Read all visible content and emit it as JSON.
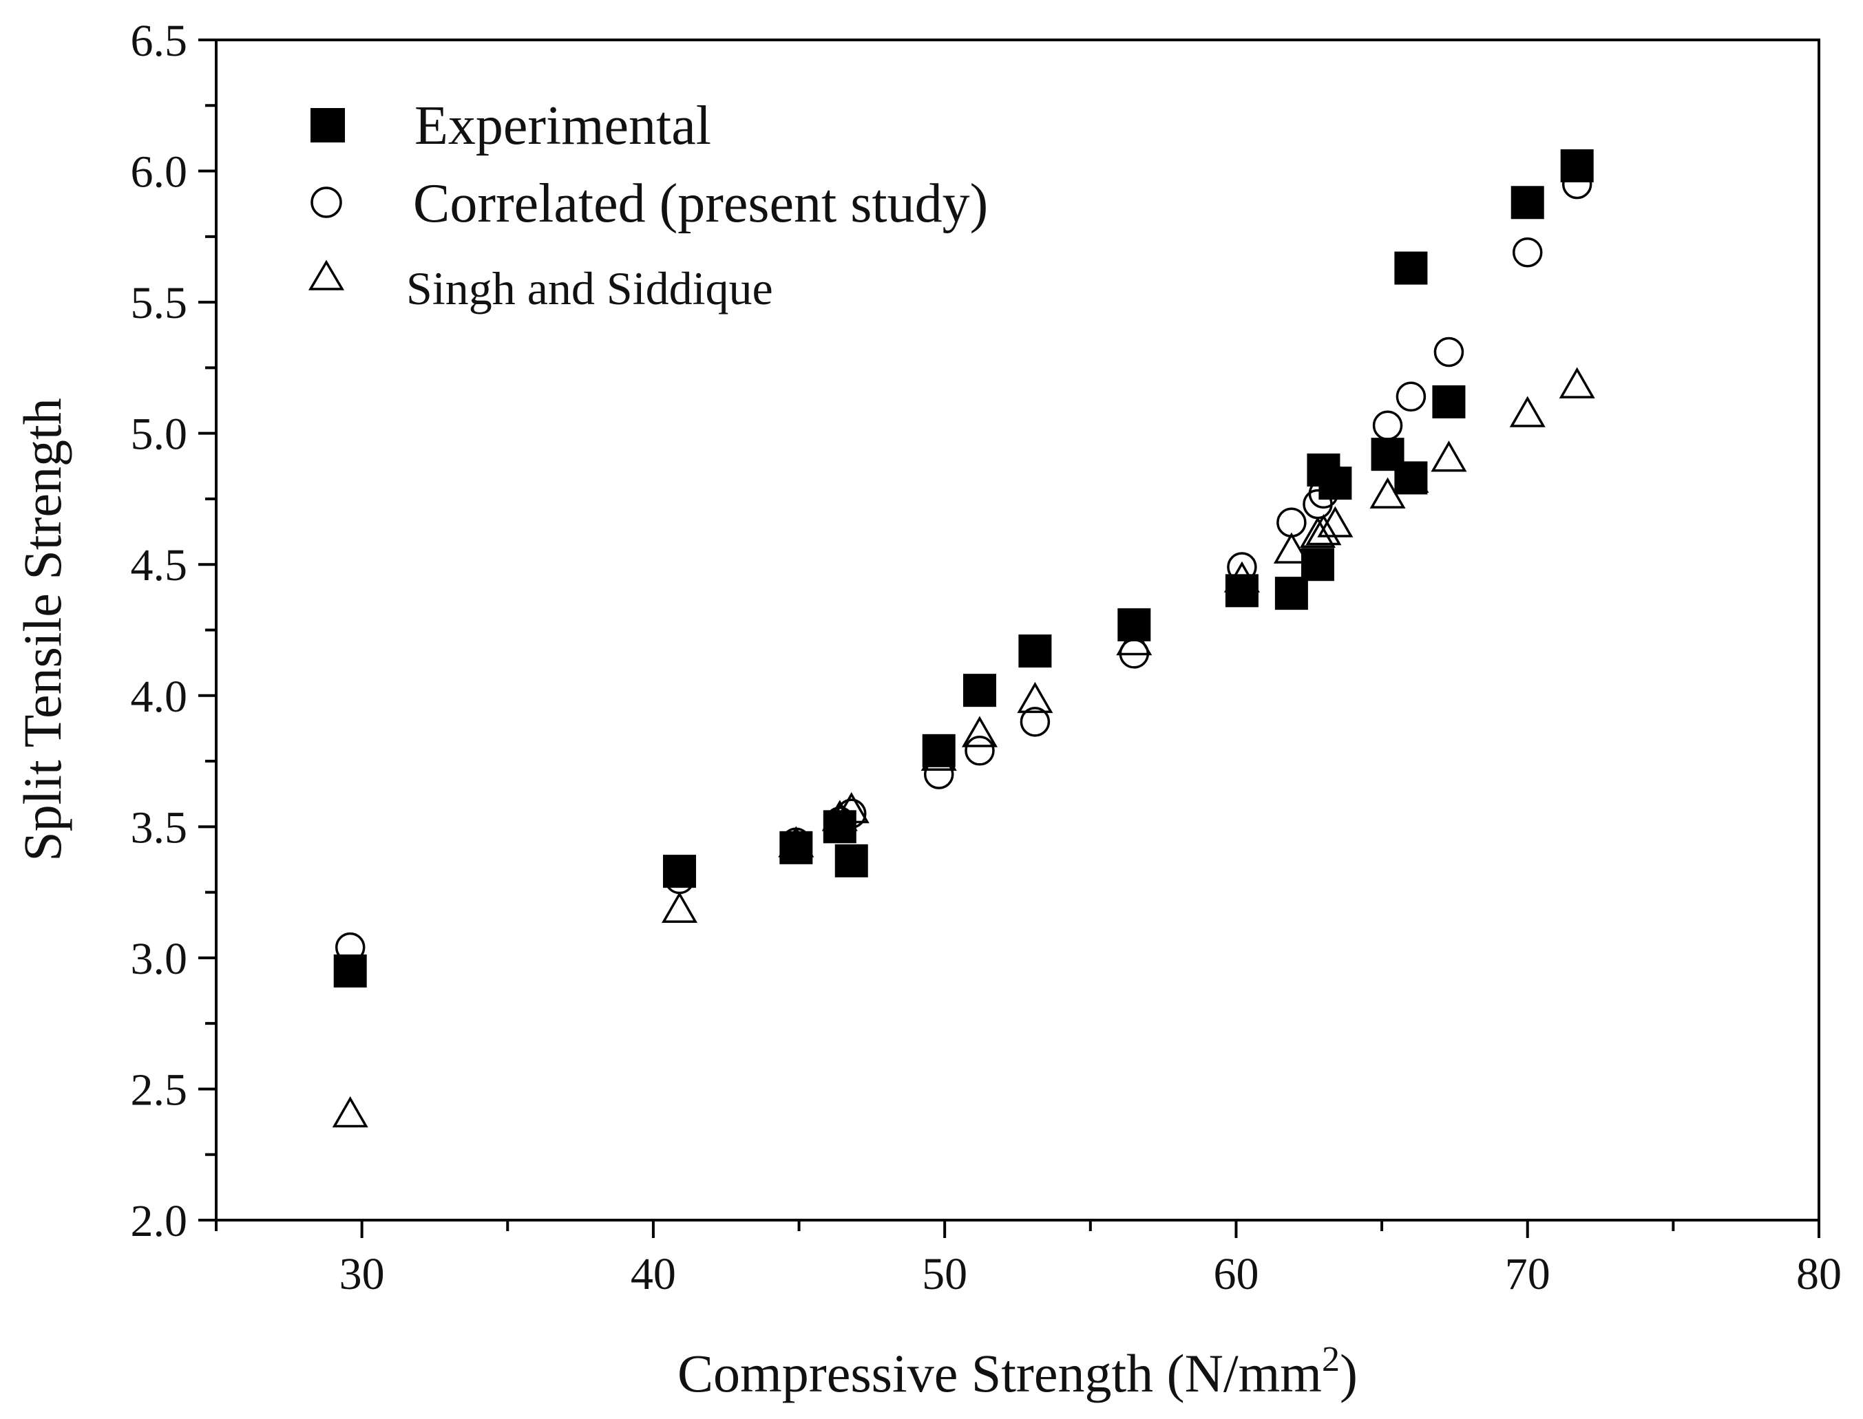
{
  "chart_data": {
    "type": "scatter",
    "title": "",
    "xlabel": "Compressive Strength (N/mm",
    "xlabel_superscript": "2",
    "xlabel_suffix": ")",
    "ylabel": "Split Tensile Strength",
    "xlim": [
      25,
      80
    ],
    "ylim": [
      2.0,
      6.5
    ],
    "x_ticks": [
      30,
      40,
      50,
      60,
      70,
      80
    ],
    "x_tick_labels": [
      "30",
      "40",
      "50",
      "60",
      "70",
      "80"
    ],
    "y_ticks": [
      2.0,
      2.5,
      3.0,
      3.5,
      4.0,
      4.5,
      5.0,
      5.5,
      6.0,
      6.5
    ],
    "y_tick_labels": [
      "2.0",
      "2.5",
      "3.0",
      "3.5",
      "4.0",
      "4.5",
      "5.0",
      "5.5",
      "6.0",
      "6.5"
    ],
    "grid": false,
    "legend_position": "top-left",
    "series": [
      {
        "name": "Experimental",
        "marker": "filled-square",
        "color": "#000000",
        "points": [
          [
            29.6,
            2.95
          ],
          [
            40.9,
            3.33
          ],
          [
            44.9,
            3.42
          ],
          [
            46.4,
            3.5
          ],
          [
            46.8,
            3.37
          ],
          [
            49.8,
            3.79
          ],
          [
            51.2,
            4.02
          ],
          [
            53.1,
            4.17
          ],
          [
            56.5,
            4.27
          ],
          [
            60.2,
            4.4
          ],
          [
            61.9,
            4.39
          ],
          [
            62.8,
            4.5
          ],
          [
            63.0,
            4.86
          ],
          [
            63.4,
            4.81
          ],
          [
            65.2,
            4.92
          ],
          [
            66.0,
            5.63
          ],
          [
            66.0,
            4.83
          ],
          [
            67.3,
            5.12
          ],
          [
            70.0,
            5.88
          ],
          [
            71.7,
            6.02
          ]
        ]
      },
      {
        "name": "Correlated (present study)",
        "marker": "open-circle",
        "color": "#000000",
        "points": [
          [
            29.6,
            3.04
          ],
          [
            40.9,
            3.3
          ],
          [
            44.9,
            3.44
          ],
          [
            46.4,
            3.52
          ],
          [
            46.8,
            3.55
          ],
          [
            49.8,
            3.7
          ],
          [
            51.2,
            3.79
          ],
          [
            53.1,
            3.9
          ],
          [
            56.5,
            4.16
          ],
          [
            60.2,
            4.49
          ],
          [
            61.9,
            4.66
          ],
          [
            62.8,
            4.73
          ],
          [
            63.0,
            4.77
          ],
          [
            63.4,
            4.82
          ],
          [
            65.2,
            5.03
          ],
          [
            66.0,
            5.14
          ],
          [
            67.3,
            5.31
          ],
          [
            70.0,
            5.69
          ],
          [
            71.7,
            5.95
          ]
        ]
      },
      {
        "name": "Singh and Siddique",
        "marker": "open-triangle",
        "color": "#000000",
        "points": [
          [
            29.6,
            2.4
          ],
          [
            40.9,
            3.18
          ],
          [
            44.9,
            3.43
          ],
          [
            46.4,
            3.53
          ],
          [
            46.8,
            3.56
          ],
          [
            49.8,
            3.76
          ],
          [
            51.2,
            3.85
          ],
          [
            53.1,
            3.98
          ],
          [
            56.5,
            4.2
          ],
          [
            60.2,
            4.44
          ],
          [
            61.9,
            4.55
          ],
          [
            62.8,
            4.61
          ],
          [
            63.0,
            4.62
          ],
          [
            63.4,
            4.65
          ],
          [
            65.2,
            4.76
          ],
          [
            66.0,
            4.82
          ],
          [
            67.3,
            4.9
          ],
          [
            70.0,
            5.07
          ],
          [
            71.7,
            5.18
          ]
        ]
      }
    ]
  }
}
